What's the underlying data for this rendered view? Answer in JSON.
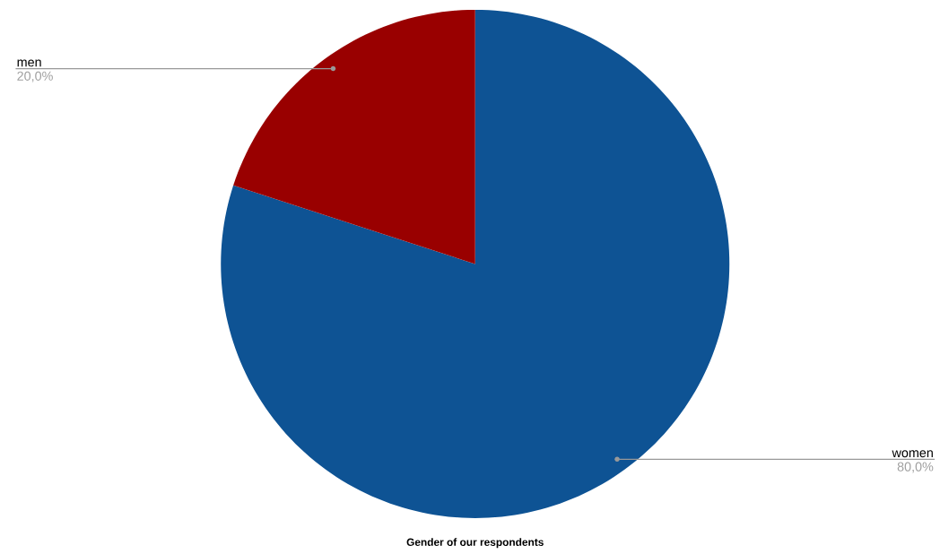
{
  "chart_data": {
    "type": "pie",
    "title": "Gender of our respondents",
    "categories": [
      "women",
      "men"
    ],
    "values": [
      80,
      20
    ],
    "colors": [
      "#0e5394",
      "#990000"
    ],
    "value_labels": [
      "80,0%",
      "20,0%"
    ]
  }
}
